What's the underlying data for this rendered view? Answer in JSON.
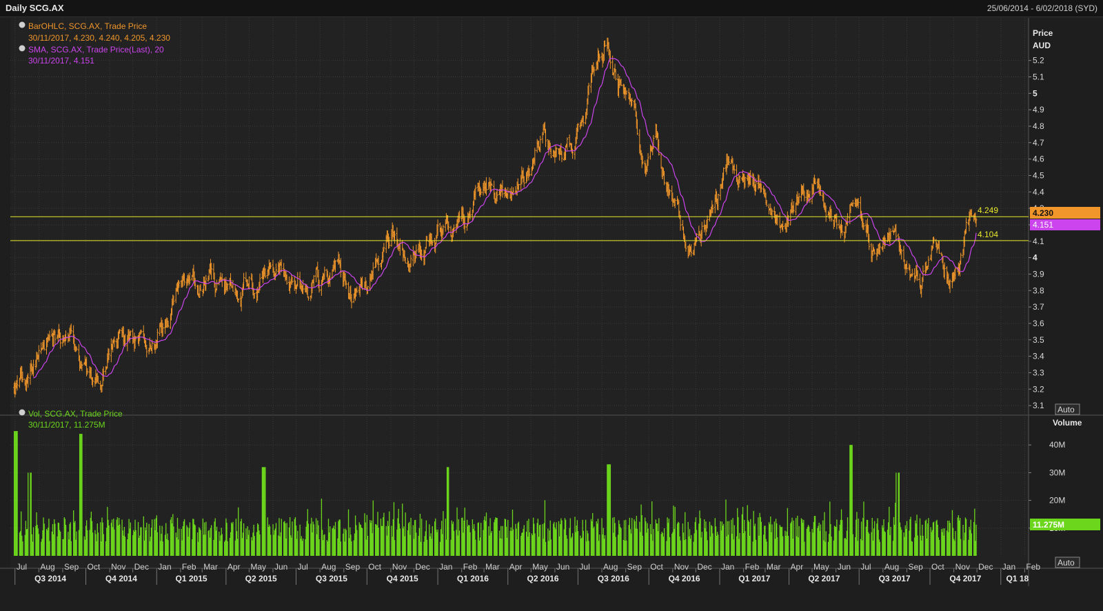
{
  "header": {
    "title": "Daily SCG.AX",
    "date_range": "25/06/2014 - 6/02/2018 (SYD)"
  },
  "price_panel": {
    "legend": [
      {
        "name": "BarOHLC, SCG.AX, Trade Price",
        "values": "30/11/2017, 4.230, 4.240, 4.205, 4.230",
        "color": "#f0962a"
      },
      {
        "name": "SMA, SCG.AX, Trade Price(Last),  20",
        "values": "30/11/2017, 4.151",
        "color": "#cc44ee"
      }
    ],
    "axis_title_1": "Price",
    "axis_title_2": "AUD",
    "auto_label": "Auto",
    "last_price_tag": "4.230",
    "sma_tag": "4.151",
    "hline_upper_label": "4.249",
    "hline_lower_label": "4.104",
    "y_ticks": [
      "5.2",
      "5.1",
      "5",
      "4.9",
      "4.8",
      "4.7",
      "4.6",
      "4.5",
      "4.4",
      "4.3",
      "4.2",
      "4.1",
      "4",
      "3.9",
      "3.8",
      "3.7",
      "3.6",
      "3.5",
      "3.4",
      "3.3",
      "3.2",
      "3.1"
    ],
    "bold_ticks": [
      "5",
      "4"
    ]
  },
  "volume_panel": {
    "legend": {
      "name": "Vol, SCG.AX, Trade Price",
      "values": "30/11/2017, 11.275M",
      "color": "#6cd61c"
    },
    "axis_title": "Volume",
    "y_ticks": [
      "40M",
      "30M",
      "20M",
      "10M"
    ],
    "last_volume_tag": "11.275M",
    "auto_label": "Auto"
  },
  "x_axis": {
    "months": [
      "Jul",
      "Aug",
      "Sep",
      "Oct",
      "Nov",
      "Dec",
      "Jan",
      "Feb",
      "Mar",
      "Apr",
      "May",
      "Jun",
      "Jul",
      "Aug",
      "Sep",
      "Oct",
      "Nov",
      "Dec",
      "Jan",
      "Feb",
      "Mar",
      "Apr",
      "May",
      "Jun",
      "Jul",
      "Aug",
      "Sep",
      "Oct",
      "Nov",
      "Dec",
      "Jan",
      "Feb",
      "Mar",
      "Apr",
      "May",
      "Jun",
      "Jul",
      "Aug",
      "Sep",
      "Oct",
      "Nov",
      "Dec",
      "Jan",
      "Feb"
    ],
    "quarters": [
      "Q3 2014",
      "Q4 2014",
      "Q1 2015",
      "Q2 2015",
      "Q3 2015",
      "Q4 2015",
      "Q1 2016",
      "Q2 2016",
      "Q3 2016",
      "Q4 2016",
      "Q1 2017",
      "Q2 2017",
      "Q3 2017",
      "Q4 2017",
      "Q1 18"
    ]
  },
  "colors": {
    "bars": "#f0962a",
    "sma": "#cc44ee",
    "volume": "#6cd61c",
    "hline": "#e8e82a",
    "background": "#1e1e1e"
  },
  "chart_data": {
    "type": "bar",
    "subtype": "ohlc",
    "series": [
      {
        "name": "BarOHLC, SCG.AX, Trade Price",
        "anchors": [
          [
            "2014-07-01",
            3.2
          ],
          [
            "2014-07-15",
            3.25
          ],
          [
            "2014-08-01",
            3.45
          ],
          [
            "2014-08-25",
            3.55
          ],
          [
            "2014-09-15",
            3.45
          ],
          [
            "2014-10-01",
            3.3
          ],
          [
            "2014-10-20",
            3.32
          ],
          [
            "2014-11-10",
            3.55
          ],
          [
            "2014-12-01",
            3.45
          ],
          [
            "2014-12-20",
            3.55
          ],
          [
            "2015-01-15",
            3.6
          ],
          [
            "2015-02-05",
            3.85
          ],
          [
            "2015-02-20",
            3.9
          ],
          [
            "2015-03-10",
            3.88
          ],
          [
            "2015-04-01",
            3.82
          ],
          [
            "2015-04-20",
            3.8
          ],
          [
            "2015-05-10",
            3.85
          ],
          [
            "2015-06-10",
            3.95
          ],
          [
            "2015-07-01",
            3.85
          ],
          [
            "2015-07-20",
            3.78
          ],
          [
            "2015-08-10",
            3.9
          ],
          [
            "2015-08-25",
            3.95
          ],
          [
            "2015-09-10",
            3.72
          ],
          [
            "2015-09-30",
            3.8
          ],
          [
            "2015-10-20",
            3.92
          ],
          [
            "2015-11-05",
            4.12
          ],
          [
            "2015-11-20",
            4.0
          ],
          [
            "2015-12-15",
            4.05
          ],
          [
            "2016-01-05",
            4.15
          ],
          [
            "2016-01-25",
            4.12
          ],
          [
            "2016-02-15",
            4.35
          ],
          [
            "2016-03-01",
            4.5
          ],
          [
            "2016-03-20",
            4.4
          ],
          [
            "2016-04-10",
            4.38
          ],
          [
            "2016-05-01",
            4.55
          ],
          [
            "2016-05-15",
            4.75
          ],
          [
            "2016-06-01",
            4.68
          ],
          [
            "2016-06-20",
            4.7
          ],
          [
            "2016-07-10",
            4.8
          ],
          [
            "2016-07-25",
            5.2
          ],
          [
            "2016-08-08",
            5.35
          ],
          [
            "2016-08-25",
            5.05
          ],
          [
            "2016-09-10",
            5.0
          ],
          [
            "2016-09-25",
            4.5
          ],
          [
            "2016-10-10",
            4.75
          ],
          [
            "2016-10-25",
            4.45
          ],
          [
            "2016-11-10",
            4.25
          ],
          [
            "2016-11-25",
            4.1
          ],
          [
            "2016-12-15",
            4.15
          ],
          [
            "2017-01-05",
            4.45
          ],
          [
            "2017-01-15",
            4.65
          ],
          [
            "2017-02-01",
            4.45
          ],
          [
            "2017-02-20",
            4.48
          ],
          [
            "2017-03-10",
            4.35
          ],
          [
            "2017-03-25",
            4.15
          ],
          [
            "2017-04-15",
            4.4
          ],
          [
            "2017-05-01",
            4.45
          ],
          [
            "2017-05-20",
            4.3
          ],
          [
            "2017-06-10",
            4.22
          ],
          [
            "2017-06-30",
            4.3
          ],
          [
            "2017-07-20",
            4.05
          ],
          [
            "2017-08-05",
            4.1
          ],
          [
            "2017-08-20",
            4.2
          ],
          [
            "2017-09-05",
            3.95
          ],
          [
            "2017-09-20",
            3.88
          ],
          [
            "2017-10-05",
            4.05
          ],
          [
            "2017-10-25",
            3.88
          ],
          [
            "2017-11-10",
            4.05
          ],
          [
            "2017-11-20",
            4.2
          ],
          [
            "2017-11-30",
            4.23
          ]
        ],
        "last": {
          "date": "30/11/2017",
          "open": 4.23,
          "high": 4.24,
          "low": 4.205,
          "close": 4.23
        }
      },
      {
        "name": "SMA, SCG.AX, Trade Price(Last),  20",
        "period": 20,
        "last": {
          "date": "30/11/2017",
          "value": 4.151
        }
      },
      {
        "name": "Vol, SCG.AX, Trade Price",
        "unit": "M",
        "typical_range": [
          5,
          20
        ],
        "spikes": [
          [
            "2014-07-02",
            45
          ],
          [
            "2014-07-20",
            30
          ],
          [
            "2014-09-25",
            44
          ],
          [
            "2015-05-20",
            32
          ],
          [
            "2016-01-15",
            32
          ],
          [
            "2016-08-10",
            33
          ],
          [
            "2017-06-20",
            40
          ],
          [
            "2017-08-20",
            30
          ]
        ],
        "last": {
          "date": "30/11/2017",
          "value": 11.275
        }
      }
    ],
    "horizontal_lines": [
      4.249,
      4.104
    ],
    "price_ylim": [
      3.05,
      5.4
    ],
    "volume_ylim": [
      0,
      50
    ],
    "x_range": [
      "2014-06-25",
      "2018-02-06"
    ],
    "ylabel": "Price AUD",
    "volume_label": "Volume",
    "grid": true
  }
}
